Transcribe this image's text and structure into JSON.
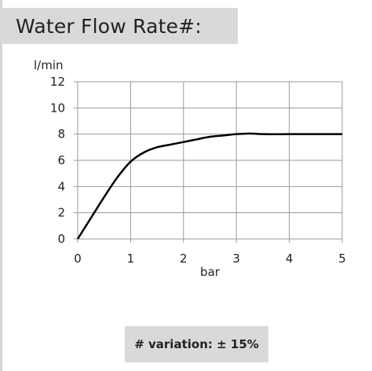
{
  "header": {
    "title": "Water Flow Rate#:"
  },
  "footnote": {
    "text": "# variation: ± 15%"
  },
  "chart_data": {
    "type": "line",
    "title": "Water Flow Rate#:",
    "xlabel": "bar",
    "ylabel": "l/min",
    "xlim": [
      0,
      5
    ],
    "ylim": [
      0,
      12
    ],
    "x_ticks": [
      "0",
      "1",
      "2",
      "3",
      "4",
      "5"
    ],
    "y_ticks": [
      "0",
      "2",
      "4",
      "6",
      "8",
      "10",
      "12"
    ],
    "grid": true,
    "legend": "none",
    "series": [
      {
        "line_color": "#000000",
        "x": [
          0,
          0.25,
          0.5,
          0.75,
          1.0,
          1.25,
          1.5,
          1.75,
          2.0,
          2.25,
          2.5,
          2.75,
          3.0,
          3.25,
          3.5,
          4.0,
          4.5,
          5.0
        ],
        "y": [
          0,
          1.6,
          3.2,
          4.7,
          5.9,
          6.6,
          7.0,
          7.2,
          7.4,
          7.6,
          7.8,
          7.9,
          8.0,
          8.05,
          8.0,
          8.0,
          8.0,
          8.0
        ]
      }
    ]
  }
}
